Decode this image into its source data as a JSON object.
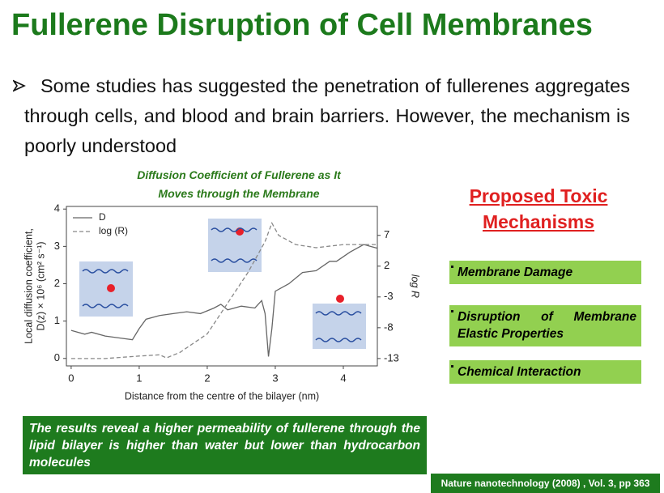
{
  "header": {
    "title": "Fullerene Disruption of Cell Membranes"
  },
  "bullet": "Some studies has suggested the penetration of fullerenes aggregates through cells, and blood and brain barriers. However, the mechanism is poorly understood",
  "chart_data": {
    "type": "line",
    "title": "Diffusion Coefficient of Fullerene as It Moves through the Membrane",
    "x_label": "Distance from the centre of the bilayer (nm)",
    "y_label": [
      "Local diffusion coefficient,",
      "D(z) × 10⁶ (cm² s⁻¹)"
    ],
    "y2_label": "log R",
    "xlim": [
      -0.07,
      4.5
    ],
    "xticks": [
      0,
      1,
      2,
      3,
      4
    ],
    "ylim": [
      -0.2,
      4.07
    ],
    "yticks": [
      0,
      1,
      2,
      3,
      4
    ],
    "y2lim": [
      -14.2,
      11.7
    ],
    "y2ticks": [
      -13,
      -8,
      -3,
      2,
      7
    ],
    "legend": "top-left",
    "series": [
      {
        "name": "D",
        "color": "#666666",
        "dash": false,
        "x": [
          0,
          0.1,
          0.2,
          0.3,
          0.5,
          0.7,
          0.9,
          1.0,
          1.1,
          1.3,
          1.5,
          1.7,
          1.9,
          2.1,
          2.2,
          2.3,
          2.5,
          2.7,
          2.8,
          2.85,
          2.9,
          2.95,
          3.0,
          3.2,
          3.4,
          3.6,
          3.8,
          3.9,
          4.1,
          4.3,
          4.4,
          4.5
        ],
        "values": [
          0.75,
          0.7,
          0.65,
          0.7,
          0.6,
          0.55,
          0.5,
          0.8,
          1.05,
          1.15,
          1.2,
          1.25,
          1.2,
          1.35,
          1.45,
          1.3,
          1.4,
          1.35,
          1.55,
          1.2,
          0.05,
          0.8,
          1.8,
          2.0,
          2.3,
          2.35,
          2.6,
          2.6,
          2.85,
          3.05,
          3.0,
          2.95
        ]
      },
      {
        "name": "log (R)",
        "color": "#888888",
        "dash": true,
        "axis": "y2",
        "x": [
          0,
          0.5,
          1.0,
          1.3,
          1.4,
          1.6,
          2.0,
          2.3,
          2.6,
          2.85,
          2.95,
          3.05,
          3.3,
          3.6,
          4.0,
          4.5
        ],
        "values": [
          -13,
          -13,
          -12.6,
          -12.4,
          -12.9,
          -12,
          -9,
          -4,
          1,
          6,
          9,
          7,
          5.5,
          5,
          5.5,
          5.5
        ]
      }
    ]
  },
  "mechanisms": {
    "title": "Proposed Toxic Mechanisms",
    "items": [
      "Membrane Damage",
      "Disruption of Membrane Elastic Properties",
      "Chemical Interaction"
    ]
  },
  "result": "The results reveal a higher permeability of fullerene through the lipid bilayer  is higher than water but lower than hydrocarbon molecules",
  "citation": "Nature nanotechnology (2008) , Vol. 3, pp 363"
}
